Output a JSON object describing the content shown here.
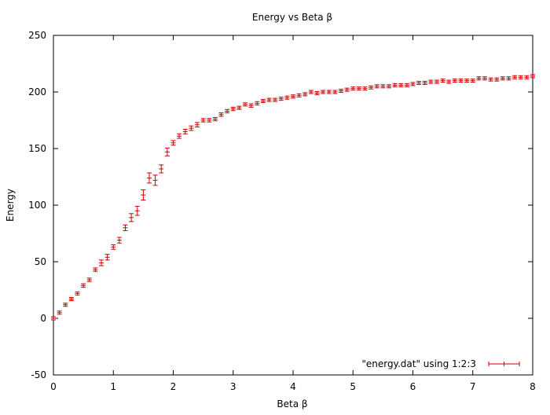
{
  "chart_data": {
    "type": "scatter",
    "title": "Energy vs Beta β",
    "xlabel": "Beta β",
    "ylabel": "Energy",
    "xlim": [
      0,
      8
    ],
    "ylim": [
      -50,
      250
    ],
    "xticks": [
      0,
      1,
      2,
      3,
      4,
      5,
      6,
      7,
      8
    ],
    "yticks": [
      -50,
      0,
      50,
      100,
      150,
      200,
      250
    ],
    "grid": false,
    "legend": "bottom-right",
    "series": [
      {
        "name": "\"energy.dat\" using 1:2:3",
        "color": "#cc0000",
        "errorbars": true,
        "x": [
          0.0,
          0.1,
          0.2,
          0.3,
          0.4,
          0.5,
          0.6,
          0.7,
          0.8,
          0.9,
          1.0,
          1.1,
          1.2,
          1.3,
          1.4,
          1.5,
          1.6,
          1.7,
          1.8,
          1.9,
          2.0,
          2.1,
          2.2,
          2.3,
          2.4,
          2.5,
          2.6,
          2.7,
          2.8,
          2.9,
          3.0,
          3.1,
          3.2,
          3.3,
          3.4,
          3.5,
          3.6,
          3.7,
          3.8,
          3.9,
          4.0,
          4.1,
          4.2,
          4.3,
          4.4,
          4.5,
          4.6,
          4.7,
          4.8,
          4.9,
          5.0,
          5.1,
          5.2,
          5.3,
          5.4,
          5.5,
          5.6,
          5.7,
          5.8,
          5.9,
          6.0,
          6.1,
          6.2,
          6.3,
          6.4,
          6.5,
          6.6,
          6.7,
          6.8,
          6.9,
          7.0,
          7.1,
          7.2,
          7.3,
          7.4,
          7.5,
          7.6,
          7.7,
          7.8,
          7.9,
          8.0
        ],
        "y": [
          0,
          5,
          12,
          17,
          22,
          29,
          34,
          43,
          49,
          54,
          63,
          69,
          80,
          89,
          95,
          109,
          124,
          122,
          132,
          147,
          155,
          161,
          165,
          168,
          171,
          175,
          175,
          176,
          180,
          183,
          185,
          186,
          189,
          188,
          190,
          192,
          193,
          193,
          194,
          195,
          196,
          197,
          198,
          200,
          199,
          200,
          200,
          200,
          201,
          202,
          203,
          203,
          203,
          204,
          205,
          205,
          205,
          206,
          206,
          206,
          207,
          208,
          208,
          209,
          209,
          210,
          209,
          210,
          210,
          210,
          210,
          212,
          212,
          211,
          211,
          212,
          212,
          213,
          213,
          213,
          214
        ],
        "err": [
          1,
          1,
          1,
          1,
          1,
          1.5,
          1.5,
          1.5,
          2.5,
          2.5,
          2,
          2.5,
          2.5,
          3.5,
          4,
          4.5,
          4.5,
          4.5,
          3.5,
          3.5,
          2,
          2,
          2,
          2,
          2,
          1.5,
          1.5,
          1.5,
          1.5,
          1.5,
          1.5,
          1,
          1,
          1.5,
          1.5,
          1,
          1,
          1,
          1,
          1,
          1,
          1,
          1,
          1,
          1,
          1,
          1,
          1,
          1,
          1,
          1,
          1,
          1,
          1,
          1,
          1,
          1,
          1,
          1,
          1,
          1,
          1,
          1,
          1,
          1,
          1,
          1,
          1,
          1,
          1,
          1,
          1,
          1,
          1,
          1,
          1,
          1,
          1,
          1,
          1,
          1
        ]
      }
    ]
  }
}
